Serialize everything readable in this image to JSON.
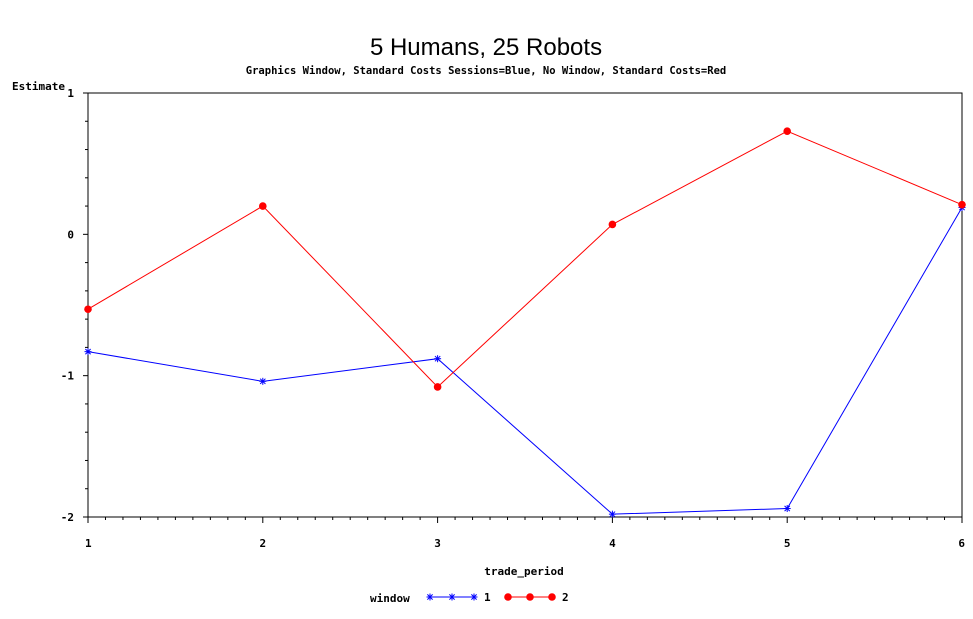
{
  "chart_data": {
    "type": "line",
    "title": "5 Humans, 25 Robots",
    "subtitle": "Graphics Window, Standard Costs Sessions=Blue, No Window, Standard Costs=Red",
    "xlabel": "trade_period",
    "ylabel": "Estimate",
    "x": [
      1,
      2,
      3,
      4,
      5,
      6
    ],
    "xlim": [
      1,
      6
    ],
    "ylim": [
      -2,
      1
    ],
    "xticks": [
      "1",
      "2",
      "3",
      "4",
      "5",
      "6"
    ],
    "yticks": [
      "1",
      "0",
      "-1",
      "-2"
    ],
    "grid": false,
    "legend": {
      "title": "window",
      "placement": "bottom",
      "entries": [
        "1",
        "2"
      ]
    },
    "series": [
      {
        "name": "1",
        "color": "#0000ff",
        "marker": "star",
        "values": [
          -0.83,
          -1.04,
          -0.88,
          -1.98,
          -1.94,
          0.19
        ]
      },
      {
        "name": "2",
        "color": "#ff0000",
        "marker": "dot",
        "values": [
          -0.53,
          0.2,
          -1.08,
          0.07,
          0.73,
          0.21
        ]
      }
    ]
  }
}
